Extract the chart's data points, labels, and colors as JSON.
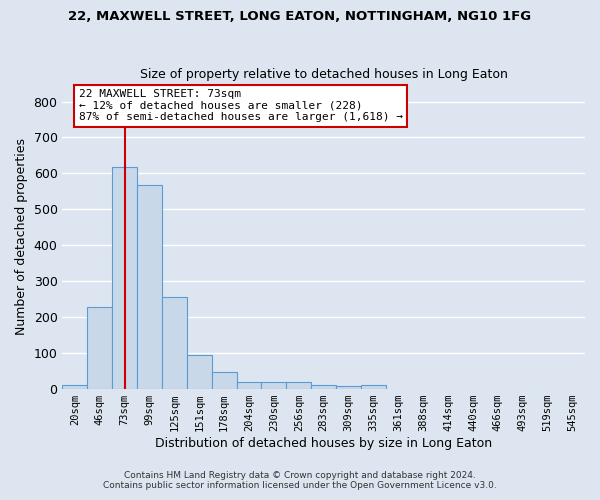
{
  "title1": "22, MAXWELL STREET, LONG EATON, NOTTINGHAM, NG10 1FG",
  "title2": "Size of property relative to detached houses in Long Eaton",
  "xlabel": "Distribution of detached houses by size in Long Eaton",
  "ylabel": "Number of detached properties",
  "bar_color": "#c8d8e8",
  "bar_edge_color": "#5b9bd5",
  "categories": [
    "20sqm",
    "46sqm",
    "73sqm",
    "99sqm",
    "125sqm",
    "151sqm",
    "178sqm",
    "204sqm",
    "230sqm",
    "256sqm",
    "283sqm",
    "309sqm",
    "335sqm",
    "361sqm",
    "388sqm",
    "414sqm",
    "440sqm",
    "466sqm",
    "493sqm",
    "519sqm",
    "545sqm"
  ],
  "values": [
    10,
    228,
    617,
    567,
    255,
    95,
    47,
    20,
    21,
    20,
    10,
    8,
    10,
    0,
    0,
    0,
    0,
    0,
    0,
    0,
    0
  ],
  "red_line_index": 2,
  "ylim": [
    0,
    850
  ],
  "yticks": [
    0,
    100,
    200,
    300,
    400,
    500,
    600,
    700,
    800
  ],
  "annotation_text": "22 MAXWELL STREET: 73sqm\n← 12% of detached houses are smaller (228)\n87% of semi-detached houses are larger (1,618) →",
  "annotation_box_color": "#ffffff",
  "annotation_box_edge_color": "#cc0000",
  "footer1": "Contains HM Land Registry data © Crown copyright and database right 2024.",
  "footer2": "Contains public sector information licensed under the Open Government Licence v3.0.",
  "background_color": "#dde6f0",
  "grid_color": "#ffffff"
}
